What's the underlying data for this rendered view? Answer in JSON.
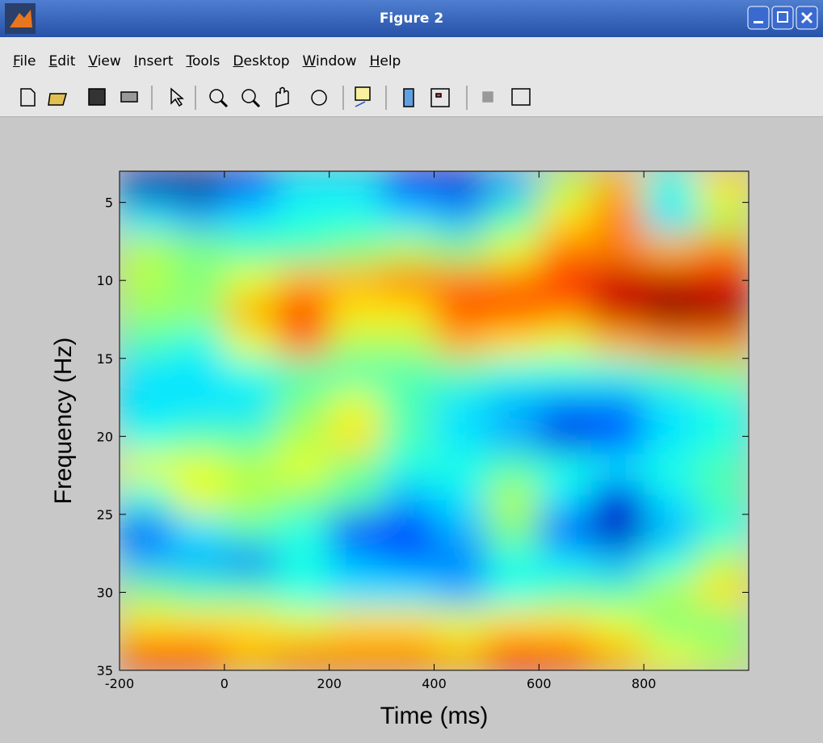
{
  "window": {
    "title": "Figure 2",
    "menu": [
      "File",
      "Edit",
      "View",
      "Insert",
      "Tools",
      "Desktop",
      "Window",
      "Help"
    ]
  },
  "chart_data": {
    "type": "heatmap",
    "xlabel": "Time (ms)",
    "ylabel": "Frequency (Hz)",
    "colormap": "jet",
    "clim": [
      -1,
      1
    ],
    "x": [
      -150,
      -50,
      50,
      150,
      250,
      350,
      450,
      550,
      650,
      750,
      850,
      950
    ],
    "y": [
      4,
      6,
      8,
      10,
      12,
      14,
      16,
      18,
      20,
      22,
      24,
      26,
      28,
      30,
      32,
      34
    ],
    "z": [
      [
        -0.9,
        -0.95,
        -0.6,
        -0.3,
        -0.3,
        -0.7,
        -0.8,
        -0.4,
        0.1,
        0.4,
        -0.2,
        0.3
      ],
      [
        -0.3,
        -0.4,
        -0.3,
        -0.2,
        -0.2,
        -0.3,
        -0.4,
        -0.1,
        0.3,
        0.5,
        -0.3,
        0.1
      ],
      [
        0.1,
        0.0,
        -0.1,
        -0.1,
        0.0,
        0.1,
        0.0,
        0.2,
        0.5,
        0.5,
        0.4,
        0.5
      ],
      [
        0.1,
        0.0,
        0.2,
        0.4,
        0.4,
        0.5,
        0.5,
        0.5,
        0.7,
        0.85,
        0.85,
        0.8
      ],
      [
        0.05,
        0.05,
        0.4,
        0.7,
        0.3,
        0.3,
        0.6,
        0.6,
        0.5,
        0.85,
        1.0,
        0.95
      ],
      [
        -0.1,
        -0.2,
        0.2,
        0.5,
        0.1,
        0.1,
        0.4,
        0.3,
        0.2,
        0.4,
        0.5,
        0.5
      ],
      [
        -0.3,
        -0.3,
        -0.2,
        -0.1,
        -0.1,
        -0.1,
        -0.1,
        -0.2,
        -0.2,
        -0.2,
        -0.1,
        0.0
      ],
      [
        -0.3,
        -0.3,
        -0.3,
        0.0,
        0.2,
        -0.1,
        -0.3,
        -0.4,
        -0.5,
        -0.5,
        -0.3,
        -0.2
      ],
      [
        -0.2,
        -0.1,
        -0.1,
        0.1,
        0.3,
        -0.1,
        -0.3,
        -0.4,
        -0.8,
        -0.6,
        -0.3,
        -0.2
      ],
      [
        0.2,
        0.2,
        0.1,
        0.2,
        0.0,
        -0.2,
        -0.2,
        -0.1,
        -0.2,
        -0.3,
        -0.2,
        -0.1
      ],
      [
        -0.2,
        0.2,
        0.1,
        0.0,
        -0.1,
        -0.4,
        -0.3,
        0.1,
        -0.3,
        -0.8,
        -0.3,
        -0.1
      ],
      [
        -0.6,
        -0.3,
        -0.1,
        -0.2,
        -0.7,
        -0.7,
        -0.4,
        0.0,
        -0.6,
        -0.9,
        -0.4,
        -0.2
      ],
      [
        -0.4,
        -0.4,
        -0.5,
        -0.2,
        -0.4,
        -0.5,
        -0.5,
        -0.2,
        -0.3,
        -0.4,
        -0.2,
        0.1
      ],
      [
        0.0,
        -0.1,
        -0.1,
        -0.2,
        -0.3,
        -0.3,
        -0.4,
        -0.2,
        -0.1,
        -0.1,
        0.1,
        0.3
      ],
      [
        0.3,
        0.3,
        0.3,
        0.2,
        0.3,
        0.3,
        0.2,
        0.3,
        0.3,
        0.2,
        0.0,
        0.0
      ],
      [
        0.6,
        0.6,
        0.4,
        0.5,
        0.5,
        0.5,
        0.4,
        0.7,
        0.6,
        0.4,
        0.2,
        0.1
      ]
    ],
    "xlim": [
      -200,
      1000
    ],
    "ylim": [
      3,
      35
    ],
    "y_reversed": true,
    "xticks": [
      -200,
      0,
      200,
      400,
      600,
      800
    ],
    "yticks": [
      5,
      10,
      15,
      20,
      25,
      30,
      35
    ]
  }
}
